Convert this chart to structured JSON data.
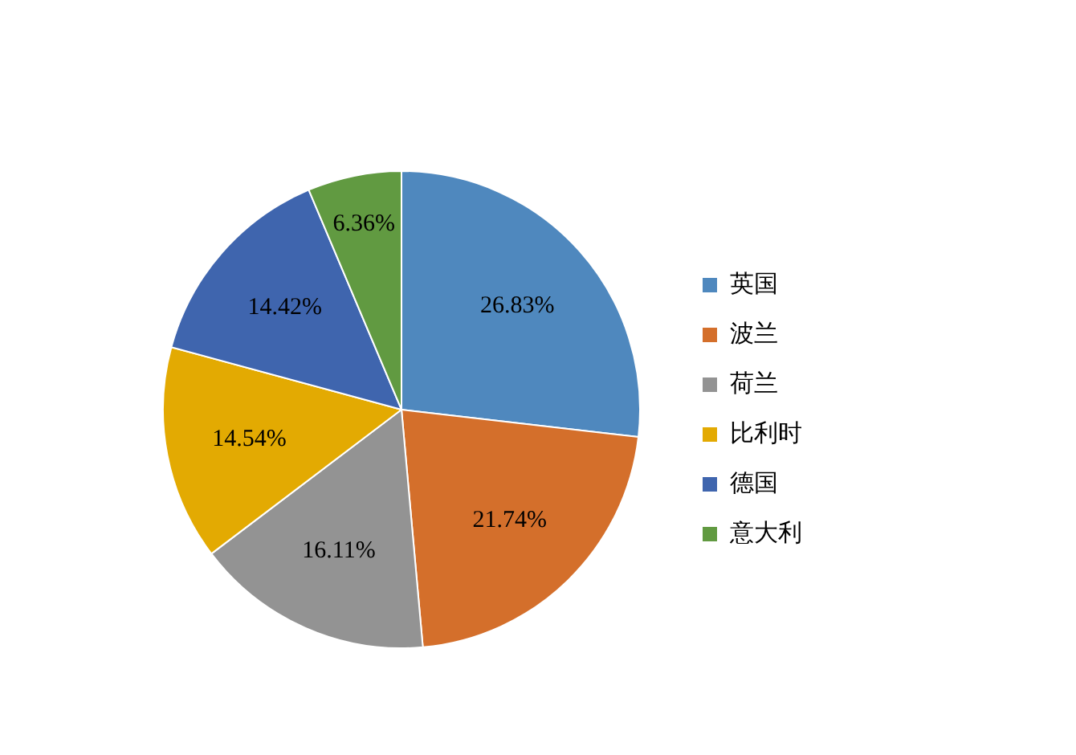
{
  "chart_data": {
    "type": "pie",
    "categories": [
      "英国",
      "波兰",
      "荷兰",
      "比利时",
      "德国",
      "意大利"
    ],
    "values": [
      26.83,
      21.74,
      16.11,
      14.54,
      14.42,
      6.36
    ],
    "colors": [
      "#4f88be",
      "#d46f2b",
      "#939393",
      "#e3aa02",
      "#3f65ae",
      "#619a41"
    ],
    "value_labels": [
      "26.83%",
      "21.74%",
      "16.11%",
      "14.54%",
      "14.42%",
      "6.36%"
    ],
    "legend": "right"
  }
}
